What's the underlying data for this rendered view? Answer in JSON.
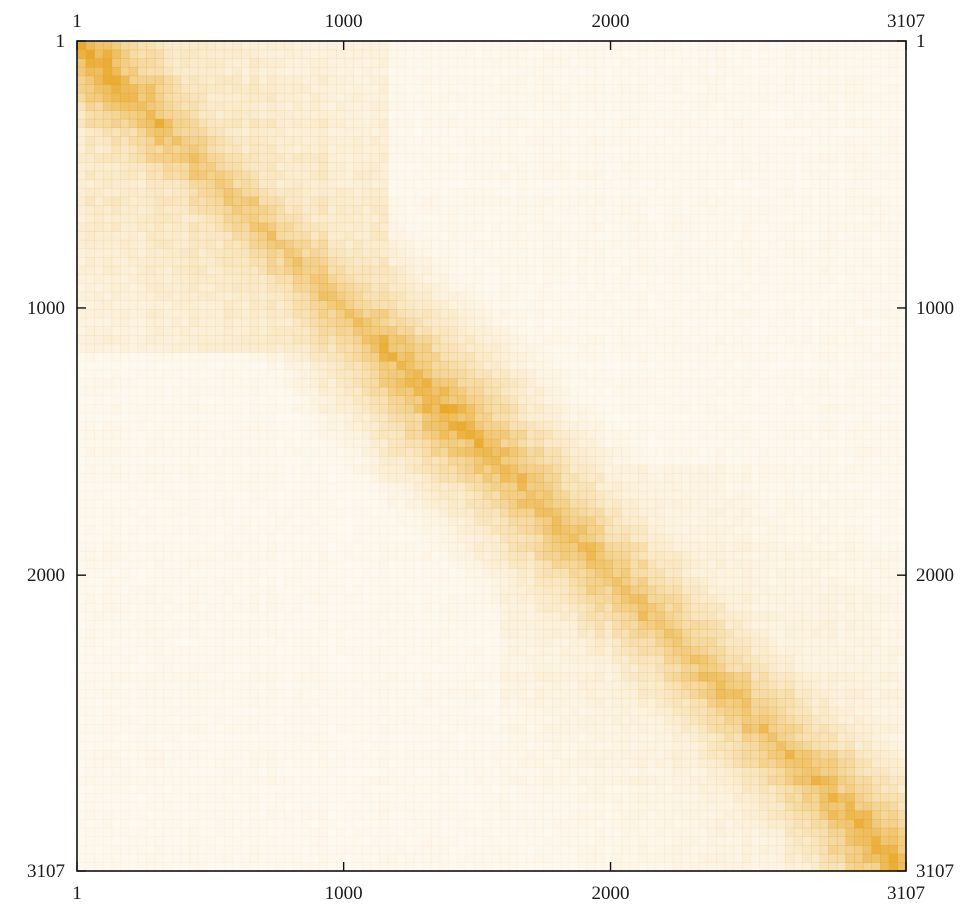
{
  "chart_data": {
    "type": "heatmap",
    "title": "",
    "xlabel": "",
    "ylabel": "",
    "xlim": [
      1,
      3107
    ],
    "ylim": [
      1,
      3107
    ],
    "y_axis_inverted": true,
    "grid": false,
    "legend": "none",
    "color_scale": {
      "low": "#ffffff",
      "high": "#e8a82a"
    },
    "x_ticks": [
      {
        "value": 1,
        "label": "1"
      },
      {
        "value": 1000,
        "label": "1000"
      },
      {
        "value": 2000,
        "label": "2000"
      },
      {
        "value": 3107,
        "label": "3107"
      }
    ],
    "y_ticks": [
      {
        "value": 1,
        "label": "1"
      },
      {
        "value": 1000,
        "label": "1000"
      },
      {
        "value": 2000,
        "label": "2000"
      },
      {
        "value": 3107,
        "label": "3107"
      }
    ],
    "diagonal_profile": [
      {
        "index": 1,
        "intensity": 0.95
      },
      {
        "index": 150,
        "intensity": 0.85
      },
      {
        "index": 500,
        "intensity": 0.6
      },
      {
        "index": 800,
        "intensity": 0.6
      },
      {
        "index": 1200,
        "intensity": 0.8
      },
      {
        "index": 1400,
        "intensity": 0.9
      },
      {
        "index": 1600,
        "intensity": 0.75
      },
      {
        "index": 1800,
        "intensity": 0.75
      },
      {
        "index": 2200,
        "intensity": 0.65
      },
      {
        "index": 2500,
        "intensity": 0.7
      },
      {
        "index": 2800,
        "intensity": 0.75
      },
      {
        "index": 3107,
        "intensity": 0.95
      }
    ],
    "blocks": [
      {
        "from": 1,
        "to": 1150,
        "intensity": 0.3
      },
      {
        "from": 1,
        "to": 2000,
        "intensity": 0.12
      },
      {
        "from": 1600,
        "to": 3107,
        "intensity": 0.2
      }
    ],
    "off_diagonal_level": 0.08
  }
}
